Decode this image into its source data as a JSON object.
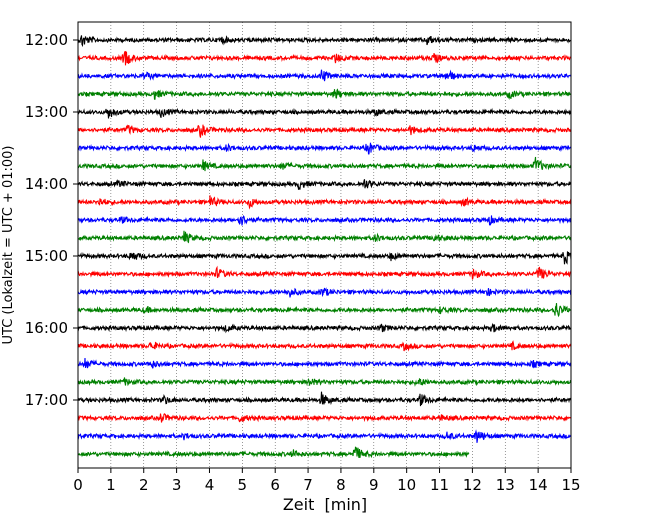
{
  "chart_data": {
    "type": "line",
    "chart_kind": "helicorder seismogram",
    "xlabel": "Zeit  [min]",
    "ylabel": "UTC (Lokalzeit = UTC + 01:00)",
    "xlim": [
      0,
      15
    ],
    "x_ticks": [
      0,
      1,
      2,
      3,
      4,
      5,
      6,
      7,
      8,
      9,
      10,
      11,
      12,
      13,
      14,
      15
    ],
    "x_tick_labels": [
      "0",
      "1",
      "2",
      "3",
      "4",
      "5",
      "6",
      "7",
      "8",
      "9",
      "10",
      "11",
      "12",
      "13",
      "14",
      "15"
    ],
    "vertical_grid": "dotted",
    "trace_interval_minutes": 15,
    "y_ticks": [
      "12:00",
      "13:00",
      "14:00",
      "15:00",
      "16:00",
      "17:00"
    ],
    "trace_colors": [
      "#000000",
      "#ff0000",
      "#0000ff",
      "#008000"
    ],
    "traces": [
      {
        "start": "12:00",
        "color": "#000000",
        "end_minute": 15,
        "events": [
          {
            "t": 0.1,
            "a": 7
          },
          {
            "t": 10.6,
            "a": 5
          },
          {
            "t": 4.3,
            "a": 4
          }
        ]
      },
      {
        "start": "12:15",
        "color": "#ff0000",
        "end_minute": 15,
        "events": [
          {
            "t": 1.4,
            "a": 9
          },
          {
            "t": 7.8,
            "a": 5
          },
          {
            "t": 10.8,
            "a": 5
          }
        ]
      },
      {
        "start": "12:30",
        "color": "#0000ff",
        "end_minute": 15,
        "events": [
          {
            "t": 7.4,
            "a": 7
          },
          {
            "t": 11.2,
            "a": 7
          },
          {
            "t": 2.0,
            "a": 4
          }
        ]
      },
      {
        "start": "12:45",
        "color": "#008000",
        "end_minute": 15,
        "events": [
          {
            "t": 2.3,
            "a": 5
          },
          {
            "t": 7.8,
            "a": 5
          },
          {
            "t": 13.1,
            "a": 4
          }
        ]
      },
      {
        "start": "13:00",
        "color": "#000000",
        "end_minute": 15,
        "events": [
          {
            "t": 0.9,
            "a": 7
          },
          {
            "t": 2.5,
            "a": 5
          },
          {
            "t": 9.0,
            "a": 4
          }
        ]
      },
      {
        "start": "13:15",
        "color": "#ff0000",
        "end_minute": 15,
        "events": [
          {
            "t": 3.7,
            "a": 7
          },
          {
            "t": 1.5,
            "a": 4
          },
          {
            "t": 10.1,
            "a": 4
          }
        ]
      },
      {
        "start": "13:30",
        "color": "#0000ff",
        "end_minute": 15,
        "events": [
          {
            "t": 8.8,
            "a": 7
          },
          {
            "t": 4.5,
            "a": 3
          },
          {
            "t": 12.0,
            "a": 3
          }
        ]
      },
      {
        "start": "13:45",
        "color": "#008000",
        "end_minute": 15,
        "events": [
          {
            "t": 13.9,
            "a": 9
          },
          {
            "t": 3.8,
            "a": 5
          },
          {
            "t": 6.2,
            "a": 3
          }
        ]
      },
      {
        "start": "14:00",
        "color": "#000000",
        "end_minute": 15,
        "events": [
          {
            "t": 6.7,
            "a": 5
          },
          {
            "t": 8.7,
            "a": 5
          },
          {
            "t": 1.2,
            "a": 3
          }
        ]
      },
      {
        "start": "14:15",
        "color": "#ff0000",
        "end_minute": 15,
        "events": [
          {
            "t": 0.6,
            "a": 5
          },
          {
            "t": 4.0,
            "a": 6
          },
          {
            "t": 5.2,
            "a": 5
          },
          {
            "t": 11.7,
            "a": 4
          }
        ]
      },
      {
        "start": "14:30",
        "color": "#0000ff",
        "end_minute": 15,
        "events": [
          {
            "t": 4.9,
            "a": 7
          },
          {
            "t": 1.3,
            "a": 3
          },
          {
            "t": 12.5,
            "a": 4
          }
        ]
      },
      {
        "start": "14:45",
        "color": "#008000",
        "end_minute": 15,
        "events": [
          {
            "t": 3.2,
            "a": 7
          },
          {
            "t": 9.0,
            "a": 4
          },
          {
            "t": 10.8,
            "a": 4
          }
        ]
      },
      {
        "start": "15:00",
        "color": "#000000",
        "end_minute": 15,
        "events": [
          {
            "t": 1.6,
            "a": 6
          },
          {
            "t": 14.8,
            "a": 8
          },
          {
            "t": 9.5,
            "a": 4
          }
        ]
      },
      {
        "start": "15:15",
        "color": "#ff0000",
        "end_minute": 15,
        "events": [
          {
            "t": 4.2,
            "a": 6
          },
          {
            "t": 12.0,
            "a": 5
          },
          {
            "t": 14.0,
            "a": 8
          }
        ]
      },
      {
        "start": "15:30",
        "color": "#0000ff",
        "end_minute": 15,
        "events": [
          {
            "t": 6.4,
            "a": 5
          },
          {
            "t": 7.4,
            "a": 5
          },
          {
            "t": 12.4,
            "a": 4
          }
        ]
      },
      {
        "start": "15:45",
        "color": "#008000",
        "end_minute": 15,
        "events": [
          {
            "t": 14.5,
            "a": 10
          },
          {
            "t": 2.0,
            "a": 3
          },
          {
            "t": 11.0,
            "a": 3
          }
        ]
      },
      {
        "start": "16:00",
        "color": "#000000",
        "end_minute": 15,
        "events": [
          {
            "t": 9.2,
            "a": 4
          },
          {
            "t": 12.6,
            "a": 4
          },
          {
            "t": 4.5,
            "a": 3
          }
        ]
      },
      {
        "start": "16:15",
        "color": "#ff0000",
        "end_minute": 15,
        "events": [
          {
            "t": 2.2,
            "a": 4
          },
          {
            "t": 9.9,
            "a": 4
          },
          {
            "t": 13.2,
            "a": 3
          }
        ]
      },
      {
        "start": "16:30",
        "color": "#0000ff",
        "end_minute": 15,
        "events": [
          {
            "t": 0.2,
            "a": 5
          },
          {
            "t": 2.2,
            "a": 4
          },
          {
            "t": 13.8,
            "a": 3
          }
        ]
      },
      {
        "start": "16:45",
        "color": "#008000",
        "end_minute": 15,
        "events": [
          {
            "t": 7.0,
            "a": 4
          },
          {
            "t": 10.3,
            "a": 5
          },
          {
            "t": 1.4,
            "a": 3
          }
        ]
      },
      {
        "start": "17:00",
        "color": "#000000",
        "end_minute": 15,
        "events": [
          {
            "t": 7.4,
            "a": 7
          },
          {
            "t": 10.4,
            "a": 6
          },
          {
            "t": 2.6,
            "a": 4
          }
        ]
      },
      {
        "start": "17:15",
        "color": "#ff0000",
        "end_minute": 15,
        "events": [
          {
            "t": 2.5,
            "a": 5
          },
          {
            "t": 4.9,
            "a": 4
          },
          {
            "t": 11.0,
            "a": 3
          }
        ]
      },
      {
        "start": "17:30",
        "color": "#0000ff",
        "end_minute": 15,
        "events": [
          {
            "t": 12.1,
            "a": 8
          },
          {
            "t": 11.2,
            "a": 4
          },
          {
            "t": 3.2,
            "a": 3
          }
        ]
      },
      {
        "start": "17:45",
        "color": "#008000",
        "end_minute": 11.9,
        "events": [
          {
            "t": 8.4,
            "a": 9
          },
          {
            "t": 6.5,
            "a": 4
          }
        ]
      }
    ]
  }
}
